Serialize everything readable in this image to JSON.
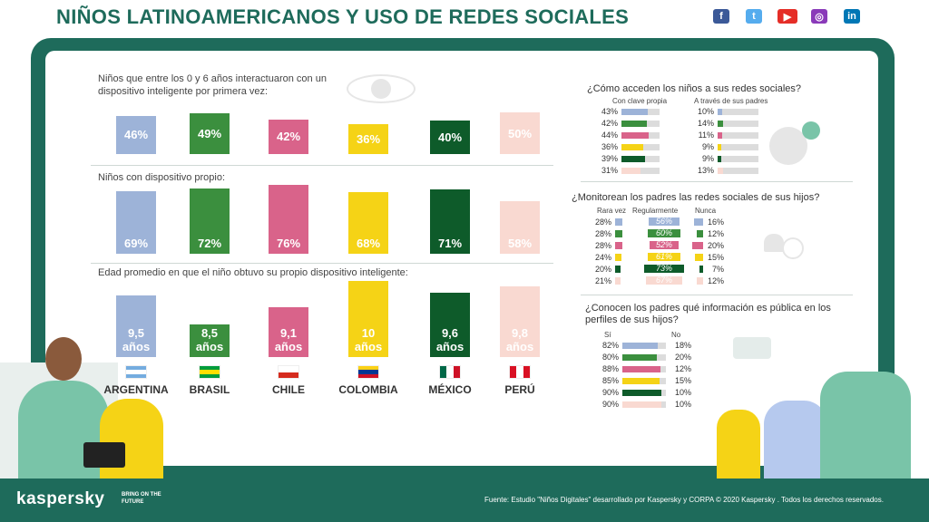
{
  "title": "NIÑOS LATINOAMERICANOS Y USO DE REDES SOCIALES",
  "social": [
    {
      "icon": "facebook-icon",
      "glyph": "f",
      "color": "#3b5998"
    },
    {
      "icon": "twitter-icon",
      "glyph": "t",
      "color": "#55acee"
    },
    {
      "icon": "youtube-icon",
      "glyph": "▶",
      "color": "#e52d27"
    },
    {
      "icon": "instagram-icon",
      "glyph": "◎",
      "color": "#8a3ab9"
    },
    {
      "icon": "linkedin-icon",
      "glyph": "in",
      "color": "#0077b5"
    }
  ],
  "footer": {
    "brand": "kaspersky",
    "tagline": "BRING ON THE FUTURE",
    "source": "Fuente: Estudio \"Niños Digitales\" desarrollado por Kaspersky y CORPA  © 2020 Kaspersky . Todos los derechos reservados."
  },
  "countries": [
    {
      "name": "ARGENTINA",
      "color": "#9db3d8",
      "flag": [
        "#74acdf",
        "#ffffff",
        "#74acdf"
      ],
      "flag_dir": "h"
    },
    {
      "name": "BRASIL",
      "color": "#3b8f3e",
      "flag": [
        "#009c3b",
        "#ffdf00",
        "#009c3b"
      ],
      "flag_dir": "h"
    },
    {
      "name": "CHILE",
      "color": "#d9638a",
      "flag": [
        "#ffffff",
        "#d52b1e"
      ],
      "flag_dir": "h"
    },
    {
      "name": "COLOMBIA",
      "color": "#f5d316",
      "flag": [
        "#fcd116",
        "#003893",
        "#ce1126"
      ],
      "flag_dir": "h"
    },
    {
      "name": "MÉXICO",
      "color": "#0e5b2a",
      "flag": [
        "#006847",
        "#ffffff",
        "#ce1126"
      ],
      "flag_dir": "v"
    },
    {
      "name": "PERÚ",
      "color": "#f9d9d1",
      "flag": [
        "#d91023",
        "#ffffff",
        "#d91023"
      ],
      "flag_dir": "v"
    }
  ],
  "chart_data": [
    {
      "type": "bar",
      "title": "Niños que entre los 0 y 6 años interactuaron con un dispositivo inteligente por primera vez:",
      "categories": [
        "ARGENTINA",
        "BRASIL",
        "CHILE",
        "COLOMBIA",
        "MÉXICO",
        "PERÚ"
      ],
      "values": [
        46,
        49,
        42,
        36,
        40,
        50
      ],
      "labels": [
        "46%",
        "49%",
        "42%",
        "36%",
        "40%",
        "50%"
      ]
    },
    {
      "type": "bar",
      "title": "Niños con dispositivo propio:",
      "categories": [
        "ARGENTINA",
        "BRASIL",
        "CHILE",
        "COLOMBIA",
        "MÉXICO",
        "PERÚ"
      ],
      "values": [
        69,
        72,
        76,
        68,
        71,
        58
      ],
      "labels": [
        "69%",
        "72%",
        "76%",
        "68%",
        "71%",
        "58%"
      ]
    },
    {
      "type": "bar",
      "title": "Edad promedio en que el niño obtuvo su propio dispositivo inteligente:",
      "categories": [
        "ARGENTINA",
        "BRASIL",
        "CHILE",
        "COLOMBIA",
        "MÉXICO",
        "PERÚ"
      ],
      "values": [
        9.5,
        8.5,
        9.1,
        10,
        9.6,
        9.8
      ],
      "labels": [
        "9,5\naños",
        "8,5\naños",
        "9,1\naños",
        "10\naños",
        "9,6\naños",
        "9,8\naños"
      ]
    },
    {
      "type": "bar",
      "title": "¿Cómo acceden los niños a sus redes sociales?",
      "categories": [
        "ARGENTINA",
        "BRASIL",
        "CHILE",
        "COLOMBIA",
        "MÉXICO",
        "PERÚ"
      ],
      "series": [
        {
          "name": "Con clave propia",
          "values": [
            43,
            42,
            44,
            36,
            39,
            31
          ],
          "labels": [
            "43%",
            "42%",
            "44%",
            "36%",
            "39%",
            "31%"
          ]
        },
        {
          "name": "A través de sus padres",
          "values": [
            10,
            14,
            11,
            9,
            9,
            13
          ],
          "labels": [
            "10%",
            "14%",
            "11%",
            "9%",
            "9%",
            "13%"
          ]
        }
      ]
    },
    {
      "type": "bar",
      "title": "¿Monitorean los padres las redes sociales de sus hijos?",
      "categories": [
        "ARGENTINA",
        "BRASIL",
        "CHILE",
        "COLOMBIA",
        "MÉXICO",
        "PERÚ"
      ],
      "series": [
        {
          "name": "Rara vez",
          "values": [
            28,
            28,
            28,
            24,
            20,
            21
          ],
          "labels": [
            "28%",
            "28%",
            "28%",
            "24%",
            "20%",
            "21%"
          ]
        },
        {
          "name": "Regularmente",
          "values": [
            56,
            60,
            52,
            61,
            73,
            67
          ],
          "labels": [
            "56%",
            "60%",
            "52%",
            "61%",
            "73%",
            "67%"
          ]
        },
        {
          "name": "Nunca",
          "values": [
            16,
            12,
            20,
            15,
            7,
            12
          ],
          "labels": [
            "16%",
            "12%",
            "20%",
            "15%",
            "7%",
            "12%"
          ]
        }
      ]
    },
    {
      "type": "bar",
      "title": "¿Conocen los padres qué información es pública en los perfiles de sus hijos?",
      "categories": [
        "ARGENTINA",
        "BRASIL",
        "CHILE",
        "COLOMBIA",
        "MÉXICO",
        "PERÚ"
      ],
      "series": [
        {
          "name": "Sí",
          "values": [
            82,
            80,
            88,
            85,
            90,
            90
          ],
          "labels": [
            "82%",
            "80%",
            "88%",
            "85%",
            "90%",
            "90%"
          ]
        },
        {
          "name": "No",
          "values": [
            18,
            20,
            12,
            15,
            10,
            10
          ],
          "labels": [
            "18%",
            "20%",
            "12%",
            "15%",
            "10%",
            "10%"
          ]
        }
      ]
    }
  ]
}
